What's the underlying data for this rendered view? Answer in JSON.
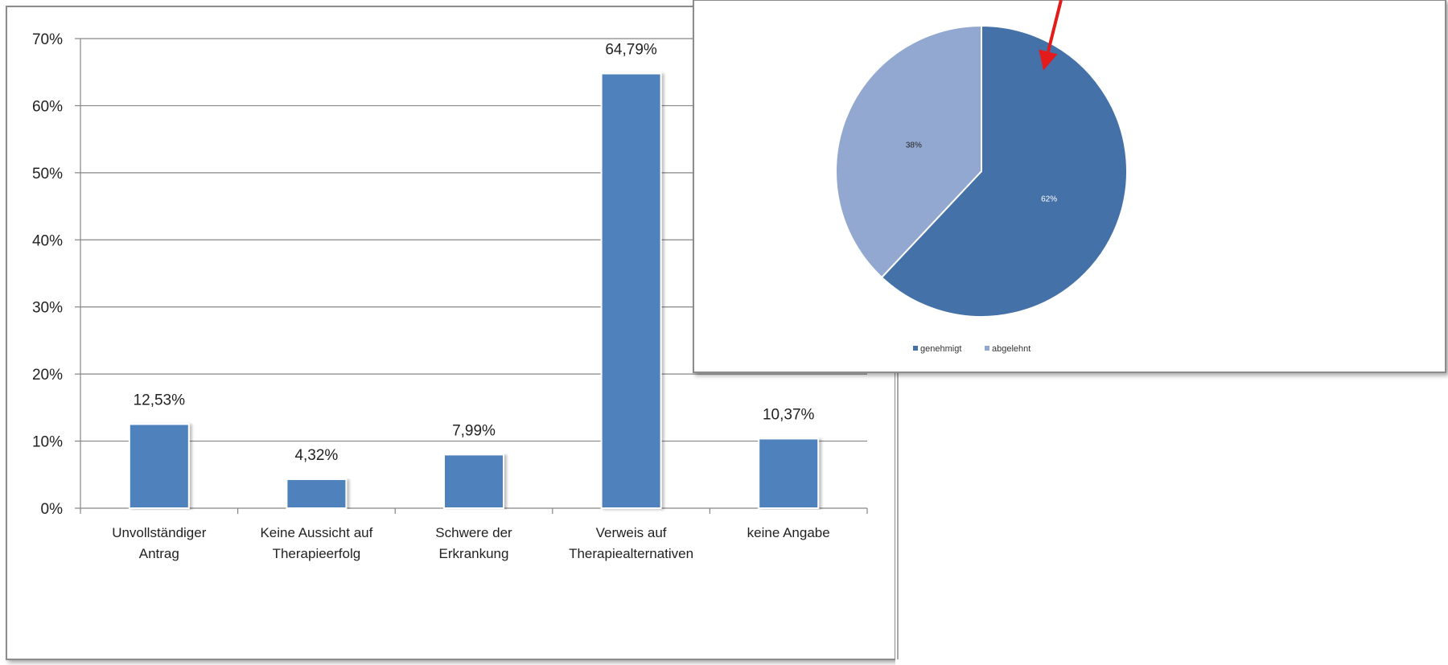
{
  "chart_data": [
    {
      "type": "bar",
      "categories": [
        [
          "Unvollständiger",
          "Antrag"
        ],
        [
          "Keine Aussicht auf",
          "Therapieerfolg"
        ],
        [
          "Schwere der",
          "Erkrankung"
        ],
        [
          "Verweis auf",
          "Therapiealternativen"
        ],
        [
          "keine Angabe"
        ]
      ],
      "values": [
        12.53,
        4.32,
        7.99,
        64.79,
        10.37
      ],
      "value_labels": [
        "12,53%",
        "4,32%",
        "7,99%",
        "64,79%",
        "10,37%"
      ],
      "yticks": [
        "0%",
        "10%",
        "20%",
        "30%",
        "40%",
        "50%",
        "60%",
        "70%"
      ],
      "ylim": [
        0,
        70
      ],
      "grid": true,
      "bar_color": "#4f81bd",
      "title": "",
      "xlabel": "",
      "ylabel": ""
    },
    {
      "type": "pie",
      "slices": [
        {
          "name": "genehmigt",
          "value": 62,
          "label": "62%",
          "color": "#4471a8"
        },
        {
          "name": "abgelehnt",
          "value": 38,
          "label": "38%",
          "color": "#93a8d0"
        }
      ],
      "legend_position": "bottom",
      "annotation": "red arrow pointing to genehmigt slice",
      "annotation_color": "#e31b1b"
    }
  ]
}
